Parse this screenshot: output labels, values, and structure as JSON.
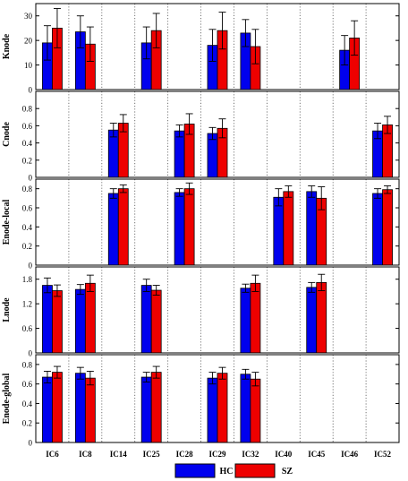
{
  "chart_data": {
    "type": "bar",
    "categories": [
      "IC6",
      "IC8",
      "IC14",
      "IC25",
      "IC28",
      "IC29",
      "IC32",
      "IC40",
      "IC45",
      "IC46",
      "IC52"
    ],
    "legend": [
      {
        "name": "HC",
        "color": "#0000ee"
      },
      {
        "name": "SZ",
        "color": "#ee0000"
      }
    ],
    "panels": [
      {
        "ylabel": "Knode",
        "ylim": [
          0,
          35
        ],
        "yticks": [
          0,
          10,
          20,
          30
        ],
        "ytick_labels": [
          "0",
          "10",
          "20",
          "30"
        ],
        "bars": [
          {
            "category": "IC6",
            "hc": 19,
            "hc_err": 7,
            "sz": 25,
            "sz_err": 8
          },
          {
            "category": "IC8",
            "hc": 23.5,
            "hc_err": 6.5,
            "sz": 18.5,
            "sz_err": 7
          },
          {
            "category": "IC25",
            "hc": 19,
            "hc_err": 6.5,
            "sz": 24,
            "sz_err": 7
          },
          {
            "category": "IC29",
            "hc": 18,
            "hc_err": 6.5,
            "sz": 24,
            "sz_err": 7.5
          },
          {
            "category": "IC32",
            "hc": 23,
            "hc_err": 5.5,
            "sz": 17.5,
            "sz_err": 7
          },
          {
            "category": "IC46",
            "hc": 16,
            "hc_err": 6,
            "sz": 21,
            "sz_err": 7
          }
        ]
      },
      {
        "ylabel": "Cnode",
        "ylim": [
          0,
          1
        ],
        "yticks": [
          0,
          0.2,
          0.4,
          0.6,
          0.8
        ],
        "ytick_labels": [
          "0",
          "0.2",
          "0.4",
          "0.6",
          "0.8"
        ],
        "bars": [
          {
            "category": "IC14",
            "hc": 0.55,
            "hc_err": 0.08,
            "sz": 0.63,
            "sz_err": 0.1
          },
          {
            "category": "IC28",
            "hc": 0.54,
            "hc_err": 0.07,
            "sz": 0.62,
            "sz_err": 0.12
          },
          {
            "category": "IC29",
            "hc": 0.51,
            "hc_err": 0.07,
            "sz": 0.57,
            "sz_err": 0.11
          },
          {
            "category": "IC52",
            "hc": 0.54,
            "hc_err": 0.09,
            "sz": 0.61,
            "sz_err": 0.1
          }
        ]
      },
      {
        "ylabel": "Enode-local",
        "ylim": [
          0,
          0.9
        ],
        "yticks": [
          0,
          0.2,
          0.4,
          0.6,
          0.8
        ],
        "ytick_labels": [
          "0",
          "0.2",
          "0.4",
          "0.6",
          "0.8"
        ],
        "bars": [
          {
            "category": "IC14",
            "hc": 0.75,
            "hc_err": 0.05,
            "sz": 0.8,
            "sz_err": 0.04
          },
          {
            "category": "IC28",
            "hc": 0.76,
            "hc_err": 0.04,
            "sz": 0.8,
            "sz_err": 0.06
          },
          {
            "category": "IC40",
            "hc": 0.71,
            "hc_err": 0.09,
            "sz": 0.77,
            "sz_err": 0.06
          },
          {
            "category": "IC45",
            "hc": 0.77,
            "hc_err": 0.06,
            "sz": 0.7,
            "sz_err": 0.12
          },
          {
            "category": "IC52",
            "hc": 0.75,
            "hc_err": 0.05,
            "sz": 0.79,
            "sz_err": 0.04
          }
        ]
      },
      {
        "ylabel": "Lnode",
        "ylim": [
          0,
          2.1
        ],
        "yticks": [
          0,
          0.6,
          1.2,
          1.8
        ],
        "ytick_labels": [
          "0",
          "0.6",
          "1.2",
          "1.8"
        ],
        "bars": [
          {
            "category": "IC6",
            "hc": 1.65,
            "hc_err": 0.18,
            "sz": 1.52,
            "sz_err": 0.14
          },
          {
            "category": "IC8",
            "hc": 1.55,
            "hc_err": 0.12,
            "sz": 1.7,
            "sz_err": 0.2
          },
          {
            "category": "IC25",
            "hc": 1.65,
            "hc_err": 0.15,
            "sz": 1.53,
            "sz_err": 0.12
          },
          {
            "category": "IC32",
            "hc": 1.58,
            "hc_err": 0.1,
            "sz": 1.7,
            "sz_err": 0.2
          },
          {
            "category": "IC45",
            "hc": 1.6,
            "hc_err": 0.12,
            "sz": 1.72,
            "sz_err": 0.2
          }
        ]
      },
      {
        "ylabel": "Enode-global",
        "ylim": [
          0,
          0.9
        ],
        "yticks": [
          0,
          0.2,
          0.4,
          0.6,
          0.8
        ],
        "ytick_labels": [
          "0",
          "0.2",
          "0.4",
          "0.6",
          "0.8"
        ],
        "bars": [
          {
            "category": "IC6",
            "hc": 0.67,
            "hc_err": 0.06,
            "sz": 0.72,
            "sz_err": 0.06
          },
          {
            "category": "IC8",
            "hc": 0.71,
            "hc_err": 0.06,
            "sz": 0.66,
            "sz_err": 0.07
          },
          {
            "category": "IC25",
            "hc": 0.67,
            "hc_err": 0.05,
            "sz": 0.72,
            "sz_err": 0.06
          },
          {
            "category": "IC29",
            "hc": 0.66,
            "hc_err": 0.06,
            "sz": 0.71,
            "sz_err": 0.06
          },
          {
            "category": "IC32",
            "hc": 0.7,
            "hc_err": 0.05,
            "sz": 0.65,
            "sz_err": 0.07
          }
        ]
      }
    ]
  }
}
